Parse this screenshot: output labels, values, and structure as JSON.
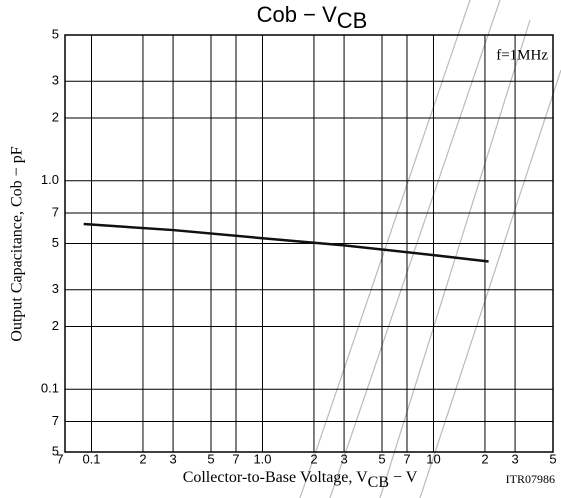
{
  "chart_data": {
    "type": "line",
    "title": "Cob − V",
    "title_sub": "CB",
    "x_label": "Collector-to-Base Voltage, V",
    "x_label_sub": "CB",
    "x_label_unit": " − V",
    "y_label": "Output Capacitance, Cob − pF",
    "annotations": [
      "f=1MHz",
      "ITR07986"
    ],
    "log_x": true,
    "log_y": true,
    "grid": true,
    "x": [
      0.09,
      0.3,
      1,
      3,
      10,
      21
    ],
    "series": [
      {
        "name": "Cob",
        "color": "#111111",
        "values": [
          0.62,
          0.58,
          0.53,
          0.49,
          0.44,
          0.41
        ]
      }
    ],
    "xlim": [
      0.07,
      50
    ],
    "xticks": [
      {
        "value": 0.07,
        "label": "7"
      },
      0.1,
      {
        "value": 0.2,
        "label": "2"
      },
      {
        "value": 0.3,
        "label": "3"
      },
      {
        "value": 0.5,
        "label": "5"
      },
      {
        "value": 0.7,
        "label": "7"
      },
      {
        "value": 1,
        "label": "1.0"
      },
      2,
      3,
      5,
      7,
      10,
      {
        "value": 20,
        "label": "2"
      },
      {
        "value": 30,
        "label": "3"
      },
      {
        "value": 50,
        "label": "5"
      }
    ],
    "ylim": [
      0.05,
      5
    ],
    "yticks": [
      {
        "value": 0.05,
        "label": "5"
      },
      {
        "value": 0.07,
        "label": "7"
      },
      0.1,
      {
        "value": 0.2,
        "label": "2"
      },
      {
        "value": 0.3,
        "label": "3"
      },
      {
        "value": 0.5,
        "label": "5"
      },
      {
        "value": 0.7,
        "label": "7"
      },
      {
        "value": 1,
        "label": "1.0"
      },
      2,
      3,
      5
    ]
  }
}
